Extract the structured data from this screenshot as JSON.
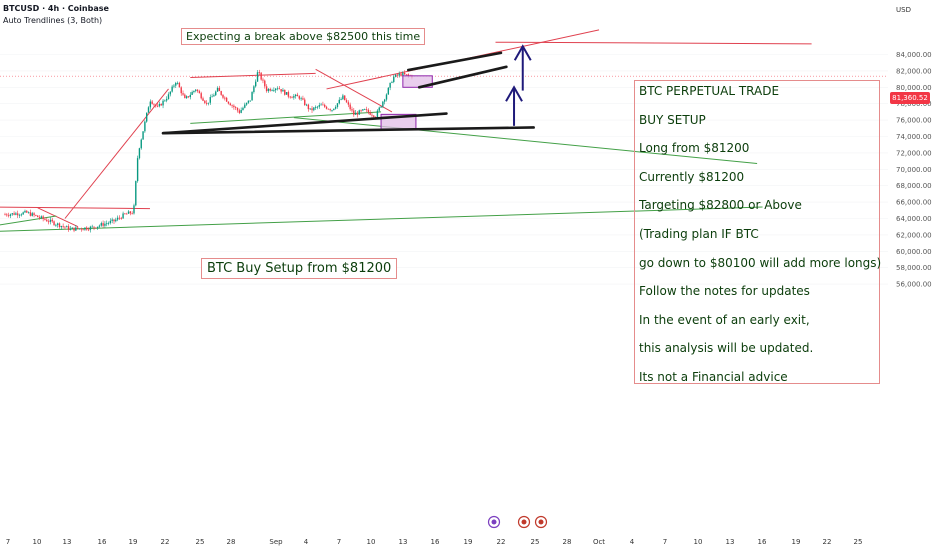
{
  "header": {
    "title": "BTCUSD · 4h · Coinbase",
    "indicator": "Auto Trendlines (3, Both)"
  },
  "axis": {
    "currency": "USD",
    "price_ticks": [
      "84,000.00",
      "82,000.00",
      "80,000.00",
      "78,000.00",
      "76,000.00",
      "74,000.00",
      "72,000.00",
      "70,000.00",
      "68,000.00",
      "66,000.00",
      "64,000.00",
      "62,000.00",
      "60,000.00",
      "58,000.00",
      "56,000.00"
    ],
    "date_ticks": [
      "7",
      "10",
      "13",
      "16",
      "19",
      "22",
      "25",
      "28",
      "Sep",
      "4",
      "7",
      "10",
      "13",
      "16",
      "19",
      "22",
      "25",
      "28",
      "Oct",
      "4",
      "7",
      "10",
      "13",
      "16",
      "19",
      "22",
      "25"
    ],
    "last_price": "81,360.52"
  },
  "notes": {
    "top": "Expecting a break above $82500 this time",
    "mid": "BTC Buy Setup from $81200"
  },
  "panel": {
    "lines": [
      "BTC PERPETUAL TRADE",
      "BUY SETUP",
      "Long from $81200",
      "Currently $81200",
      "Targeting $82800 or Above",
      "(Trading plan IF BTC",
      "go down to $80100 will add more longs)",
      "Follow the notes for updates",
      "In the event of an early exit,",
      "this analysis will be updated.",
      "Its not a Financial advice"
    ]
  },
  "colors": {
    "up": "#089981",
    "down": "#f23645",
    "resistance": "#e0414f",
    "support": "#43a047",
    "annotation": "#1a1a1a",
    "arrow": "#1f1a7a",
    "box_fill": "#e1bee7",
    "box_stroke": "#8e24aa"
  },
  "chart_data": {
    "type": "candlestick",
    "symbol": "BTCUSD",
    "timeframe": "4h",
    "exchange": "Coinbase",
    "ylim": [
      55500,
      86000
    ],
    "price_scale": "linear",
    "x_range_days": [
      "Aug 7",
      "Sep 27"
    ],
    "last_price": 81360.52,
    "price_path": [
      {
        "d": 0,
        "p": 64500
      },
      {
        "d": 2,
        "p": 64700
      },
      {
        "d": 4,
        "p": 63700
      },
      {
        "d": 6,
        "p": 62700
      },
      {
        "d": 8,
        "p": 62900
      },
      {
        "d": 10,
        "p": 63700
      },
      {
        "d": 11,
        "p": 64500
      },
      {
        "d": 11.8,
        "p": 64800
      },
      {
        "d": 12.2,
        "p": 72000
      },
      {
        "d": 12.8,
        "p": 75500
      },
      {
        "d": 13.3,
        "p": 78500
      },
      {
        "d": 14,
        "p": 77500
      },
      {
        "d": 15,
        "p": 79000
      },
      {
        "d": 15.7,
        "p": 80800
      },
      {
        "d": 16.5,
        "p": 78500
      },
      {
        "d": 17.5,
        "p": 79800
      },
      {
        "d": 18.5,
        "p": 78000
      },
      {
        "d": 19.5,
        "p": 79700
      },
      {
        "d": 20.5,
        "p": 78200
      },
      {
        "d": 21.5,
        "p": 77000
      },
      {
        "d": 22.5,
        "p": 78500
      },
      {
        "d": 23.2,
        "p": 81900
      },
      {
        "d": 24,
        "p": 79700
      },
      {
        "d": 25,
        "p": 80000
      },
      {
        "d": 26,
        "p": 79000
      },
      {
        "d": 27,
        "p": 78800
      },
      {
        "d": 28,
        "p": 77200
      },
      {
        "d": 29,
        "p": 77800
      },
      {
        "d": 30,
        "p": 77300
      },
      {
        "d": 31,
        "p": 78800
      },
      {
        "d": 32,
        "p": 76700
      },
      {
        "d": 33,
        "p": 77200
      },
      {
        "d": 34,
        "p": 76500
      },
      {
        "d": 35,
        "p": 79200
      },
      {
        "d": 35.6,
        "p": 81200
      },
      {
        "d": 36.3,
        "p": 81600
      },
      {
        "d": 37,
        "p": 81400
      },
      {
        "d": 37.5,
        "p": 81360
      }
    ],
    "trendlines": [
      {
        "kind": "resistance",
        "from": {
          "d": -1.5,
          "p": 65400
        },
        "to": {
          "d": 13.3,
          "p": 65200
        }
      },
      {
        "kind": "resistance",
        "from": {
          "d": 3,
          "p": 65300
        },
        "to": {
          "d": 6.7,
          "p": 63000
        }
      },
      {
        "kind": "resistance",
        "from": {
          "d": 5.5,
          "p": 64000
        },
        "to": {
          "d": 15,
          "p": 79800
        }
      },
      {
        "kind": "resistance",
        "from": {
          "d": 17,
          "p": 81200
        },
        "to": {
          "d": 28.5,
          "p": 81700
        }
      },
      {
        "kind": "resistance",
        "from": {
          "d": 28.5,
          "p": 82200
        },
        "to": {
          "d": 35.5,
          "p": 77000
        }
      },
      {
        "kind": "resistance",
        "from": {
          "d": 29.5,
          "p": 79800
        },
        "to": {
          "d": 54.5,
          "p": 87000
        }
      },
      {
        "kind": "resistance",
        "from": {
          "d": 45,
          "p": 85500
        },
        "to": {
          "d": 74,
          "p": 85300
        }
      },
      {
        "kind": "support",
        "from": {
          "d": -1.5,
          "p": 62400
        },
        "to": {
          "d": 69.5,
          "p": 65400
        }
      },
      {
        "kind": "support",
        "from": {
          "d": -1.5,
          "p": 63000
        },
        "to": {
          "d": 4.7,
          "p": 64300
        }
      },
      {
        "kind": "support",
        "from": {
          "d": 17,
          "p": 75600
        },
        "to": {
          "d": 34.5,
          "p": 77000
        }
      },
      {
        "kind": "support",
        "from": {
          "d": 26.5,
          "p": 76300
        },
        "to": {
          "d": 69,
          "p": 70700
        }
      }
    ],
    "annotation_lines": [
      {
        "from": {
          "d": 14.5,
          "p": 74400
        },
        "to": {
          "d": 40.5,
          "p": 76800
        }
      },
      {
        "from": {
          "d": 14.5,
          "p": 74400
        },
        "to": {
          "d": 48.5,
          "p": 75100
        }
      },
      {
        "from": {
          "d": 37,
          "p": 82100
        },
        "to": {
          "d": 45.5,
          "p": 84200
        }
      },
      {
        "from": {
          "d": 38,
          "p": 80000
        },
        "to": {
          "d": 46,
          "p": 82500
        }
      }
    ],
    "arrows": [
      {
        "d": 46.7,
        "from": 75300,
        "to": 80000
      },
      {
        "d": 47.5,
        "from": 79600,
        "to": 85000
      }
    ],
    "boxes": [
      {
        "d0": 34.5,
        "d1": 37.7,
        "p0": 74900,
        "p1": 76700
      },
      {
        "d0": 36.5,
        "d1": 39.2,
        "p0": 80000,
        "p1": 81400
      }
    ],
    "title": "",
    "xlabel": "",
    "ylabel": ""
  }
}
